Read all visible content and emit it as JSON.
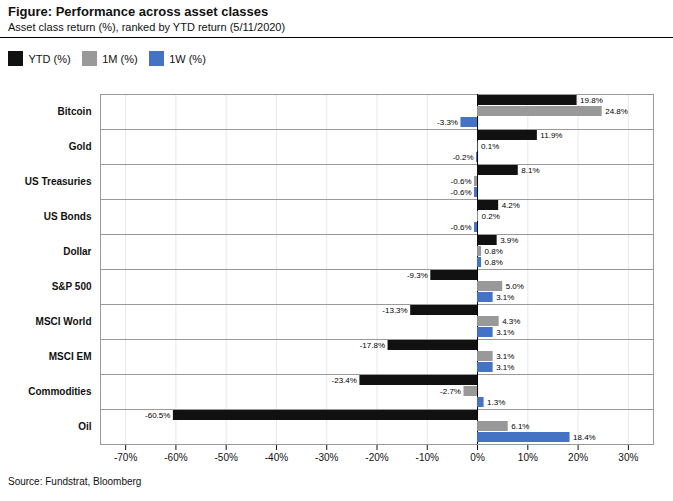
{
  "chart_data": {
    "type": "bar",
    "orientation": "horizontal",
    "title": "Figure: Performance across asset classes",
    "subtitle": "Asset class return (%), ranked by YTD return (5/11/2020)",
    "source": "Source: Fundstrat, Bloomberg",
    "categories": [
      "Oil",
      "Commodities",
      "MSCI EM",
      "MSCI World",
      "S&P 500",
      "Dollar",
      "US Bonds",
      "US Treasuries",
      "Gold",
      "Bitcoin"
    ],
    "series": [
      {
        "name": "YTD (%)",
        "color": "#111111",
        "values": [
          -60.5,
          -23.4,
          -17.8,
          -13.3,
          -9.3,
          3.9,
          4.2,
          8.1,
          11.9,
          19.8
        ],
        "value_labels": [
          "-60.5%",
          "-23.4%",
          "-17.8%",
          "-13.3%",
          "-9.3%",
          "3.9%",
          "4.2%",
          "8.1%",
          "11.9%",
          "19.8%"
        ]
      },
      {
        "name": "1M (%)",
        "color": "#999999",
        "values": [
          6.1,
          -2.7,
          3.1,
          4.3,
          5.0,
          0.8,
          0.2,
          -0.6,
          0.1,
          24.8
        ],
        "value_labels": [
          "6.1%",
          "-2.7%",
          "3.1%",
          "4.3%",
          "5.0%",
          "0.8%",
          "0.2%",
          "-0.6%",
          "0.1%",
          "24.8%"
        ]
      },
      {
        "name": "1W (%)",
        "color": "#4472c4",
        "values": [
          18.4,
          1.3,
          3.1,
          3.1,
          3.1,
          0.8,
          -0.6,
          -0.6,
          -0.2,
          -3.3
        ],
        "value_labels": [
          "18.4%",
          "1.3%",
          "3.1%",
          "3.1%",
          "3.1%",
          "0.8%",
          "-0.6%",
          "-0.6%",
          "-0.2%",
          "-3.3%"
        ]
      }
    ],
    "xlim": [
      -75,
      35
    ],
    "xticks": [
      {
        "value": -70,
        "label": "-70%"
      },
      {
        "value": -60,
        "label": "-60%"
      },
      {
        "value": -50,
        "label": "-50%"
      },
      {
        "value": -40,
        "label": "-40%"
      },
      {
        "value": -30,
        "label": "-30%"
      },
      {
        "value": -20,
        "label": "-20%"
      },
      {
        "value": -10,
        "label": "-10%"
      },
      {
        "value": 0,
        "label": "0%"
      },
      {
        "value": 10,
        "label": "10%"
      },
      {
        "value": 20,
        "label": "20%"
      },
      {
        "value": 30,
        "label": "30%"
      }
    ],
    "grid": true,
    "legend": "upper left",
    "data_labels": true
  }
}
